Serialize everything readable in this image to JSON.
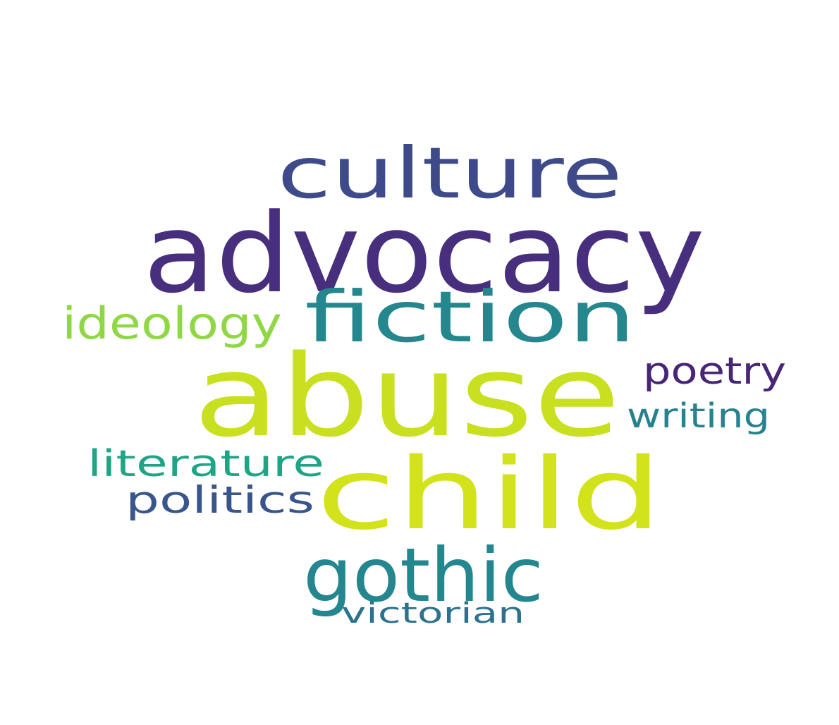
{
  "background": "#ffffff",
  "words": [
    {
      "text": "culture",
      "color": "#3e4a89"
    },
    {
      "text": "advocacy",
      "color": "#472f7d"
    },
    {
      "text": "fiction",
      "color": "#24878e"
    },
    {
      "text": "ideology",
      "color": "#8fd744"
    },
    {
      "text": "abuse",
      "color": "#c8e020"
    },
    {
      "text": "poetry",
      "color": "#482576"
    },
    {
      "text": "writing",
      "color": "#26828e"
    },
    {
      "text": "literature",
      "color": "#20a486"
    },
    {
      "text": "politics",
      "color": "#39568c"
    },
    {
      "text": "child",
      "color": "#d2e21b"
    },
    {
      "text": "gothic",
      "color": "#24868e"
    },
    {
      "text": "victorian",
      "color": "#2c728e"
    }
  ]
}
